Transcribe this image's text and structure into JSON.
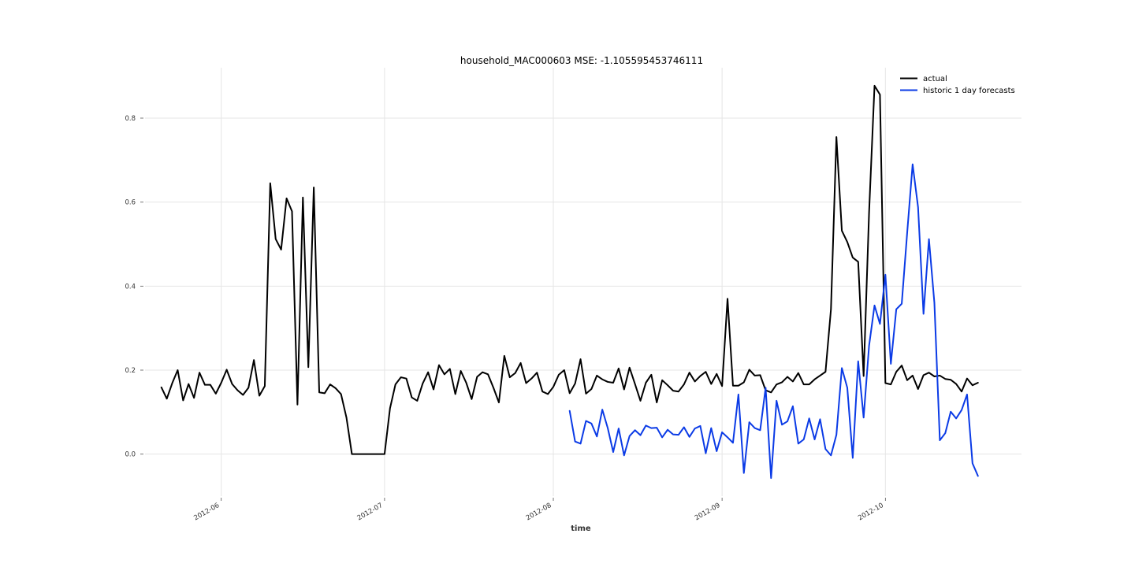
{
  "chart_data": {
    "type": "line",
    "title": "household_MAC000603 MSE: -1.105595453746111",
    "xlabel": "time",
    "ylabel": "",
    "xlim": [
      "2012-05-18",
      "2012-10-26"
    ],
    "ylim": [
      -0.1,
      0.92
    ],
    "x_ticks": [
      {
        "date": "2012-06-01",
        "label": "2012-06"
      },
      {
        "date": "2012-07-01",
        "label": "2012-07"
      },
      {
        "date": "2012-08-01",
        "label": "2012-08"
      },
      {
        "date": "2012-09-01",
        "label": "2012-09"
      },
      {
        "date": "2012-10-01",
        "label": "2012-10"
      }
    ],
    "y_ticks": [
      0.0,
      0.2,
      0.4,
      0.6,
      0.8
    ],
    "y_tick_labels": [
      "0.0",
      "0.2",
      "0.4",
      "0.6",
      "0.8"
    ],
    "grid": true,
    "legend_position": "top-right",
    "series": [
      {
        "name": "actual",
        "color": "#000000",
        "start": "2012-05-21",
        "values": [
          0.159,
          0.132,
          0.169,
          0.2,
          0.128,
          0.167,
          0.134,
          0.194,
          0.165,
          0.165,
          0.144,
          0.17,
          0.201,
          0.167,
          0.152,
          0.141,
          0.158,
          0.224,
          0.139,
          0.162,
          0.645,
          0.512,
          0.487,
          0.609,
          0.578,
          0.118,
          0.611,
          0.207,
          0.635,
          0.147,
          0.145,
          0.166,
          0.157,
          0.143,
          0.087,
          0.0,
          0.0,
          0.0,
          0.0,
          0.0,
          0.0,
          0.0,
          0.109,
          0.166,
          0.183,
          0.18,
          0.135,
          0.127,
          0.168,
          0.195,
          0.154,
          0.212,
          0.19,
          0.203,
          0.143,
          0.198,
          0.17,
          0.131,
          0.184,
          0.195,
          0.19,
          0.158,
          0.123,
          0.234,
          0.183,
          0.193,
          0.217,
          0.169,
          0.18,
          0.194,
          0.149,
          0.143,
          0.16,
          0.189,
          0.2,
          0.145,
          0.168,
          0.226,
          0.144,
          0.155,
          0.187,
          0.178,
          0.172,
          0.17,
          0.204,
          0.154,
          0.206,
          0.167,
          0.127,
          0.17,
          0.189,
          0.123,
          0.176,
          0.164,
          0.151,
          0.149,
          0.166,
          0.194,
          0.173,
          0.186,
          0.196,
          0.167,
          0.191,
          0.162,
          0.37,
          0.163,
          0.163,
          0.171,
          0.201,
          0.187,
          0.188,
          0.152,
          0.147,
          0.166,
          0.171,
          0.184,
          0.173,
          0.193,
          0.166,
          0.166,
          0.178,
          0.187,
          0.196,
          0.345,
          0.755,
          0.532,
          0.505,
          0.468,
          0.458,
          0.186,
          0.575,
          0.877,
          0.856,
          0.169,
          0.166,
          0.196,
          0.211,
          0.176,
          0.187,
          0.155,
          0.188,
          0.194,
          0.185,
          0.187,
          0.179,
          0.177,
          0.167,
          0.149,
          0.18,
          0.164,
          0.17
        ]
      },
      {
        "name": "historic 1 day forecasts",
        "color": "#0b3be6",
        "start": "2012-08-04",
        "values": [
          0.103,
          0.03,
          0.025,
          0.079,
          0.073,
          0.042,
          0.106,
          0.062,
          0.005,
          0.061,
          -0.003,
          0.043,
          0.057,
          0.045,
          0.068,
          0.062,
          0.063,
          0.04,
          0.058,
          0.047,
          0.046,
          0.064,
          0.041,
          0.061,
          0.067,
          0.002,
          0.062,
          0.007,
          0.052,
          0.04,
          0.027,
          0.142,
          -0.045,
          0.076,
          0.062,
          0.057,
          0.158,
          -0.057,
          0.127,
          0.07,
          0.078,
          0.114,
          0.025,
          0.035,
          0.085,
          0.035,
          0.083,
          0.012,
          -0.003,
          0.046,
          0.205,
          0.158,
          -0.009,
          0.221,
          0.087,
          0.258,
          0.354,
          0.31,
          0.427,
          0.215,
          0.345,
          0.358,
          0.527,
          0.69,
          0.588,
          0.334,
          0.512,
          0.36,
          0.033,
          0.05,
          0.101,
          0.085,
          0.105,
          0.142,
          -0.022,
          -0.052
        ]
      }
    ]
  }
}
